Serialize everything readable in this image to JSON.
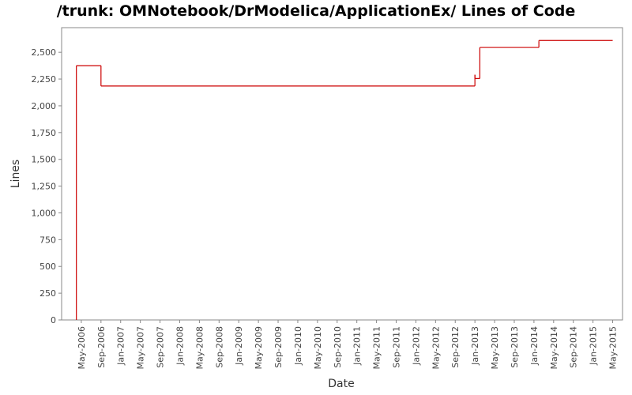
{
  "chart_data": {
    "type": "step-line",
    "title": "/trunk: OMNotebook/DrModelica/ApplicationEx/ Lines of Code",
    "x_label": "Date",
    "y_label": "Lines",
    "series": [
      {
        "name": "Lines",
        "color": "#cc0000",
        "x": [
          "2006-04",
          "2006-04",
          "2006-09",
          "2013-01",
          "2013-01",
          "2013-02",
          "2014-02",
          "2014-02",
          "2015-05"
        ],
        "values": [
          0,
          2375,
          2185,
          2290,
          2255,
          2545,
          2600,
          2610,
          2610
        ]
      }
    ],
    "xlim": [
      "2006-01",
      "2015-07"
    ],
    "xticks": [
      {
        "value": "2006-05",
        "label": "May-2006"
      },
      {
        "value": "2006-09",
        "label": "Sep-2006"
      },
      {
        "value": "2007-01",
        "label": "Jan-2007"
      },
      {
        "value": "2007-05",
        "label": "May-2007"
      },
      {
        "value": "2007-09",
        "label": "Sep-2007"
      },
      {
        "value": "2008-01",
        "label": "Jan-2008"
      },
      {
        "value": "2008-05",
        "label": "May-2008"
      },
      {
        "value": "2008-09",
        "label": "Sep-2008"
      },
      {
        "value": "2009-01",
        "label": "Jan-2009"
      },
      {
        "value": "2009-05",
        "label": "May-2009"
      },
      {
        "value": "2009-09",
        "label": "Sep-2009"
      },
      {
        "value": "2010-01",
        "label": "Jan-2010"
      },
      {
        "value": "2010-05",
        "label": "May-2010"
      },
      {
        "value": "2010-09",
        "label": "Sep-2010"
      },
      {
        "value": "2011-01",
        "label": "Jan-2011"
      },
      {
        "value": "2011-05",
        "label": "May-2011"
      },
      {
        "value": "2011-09",
        "label": "Sep-2011"
      },
      {
        "value": "2012-01",
        "label": "Jan-2012"
      },
      {
        "value": "2012-05",
        "label": "May-2012"
      },
      {
        "value": "2012-09",
        "label": "Sep-2012"
      },
      {
        "value": "2013-01",
        "label": "Jan-2013"
      },
      {
        "value": "2013-05",
        "label": "May-2013"
      },
      {
        "value": "2013-09",
        "label": "Sep-2013"
      },
      {
        "value": "2014-01",
        "label": "Jan-2014"
      },
      {
        "value": "2014-05",
        "label": "May-2014"
      },
      {
        "value": "2014-09",
        "label": "Sep-2014"
      },
      {
        "value": "2015-01",
        "label": "Jan-2015"
      },
      {
        "value": "2015-05",
        "label": "May-2015"
      }
    ],
    "ylim": [
      0,
      2730
    ],
    "yticks": [
      0,
      250,
      500,
      750,
      {
        "value": 1000,
        "label": "1,000"
      },
      {
        "value": 1250,
        "label": "1,250"
      },
      {
        "value": 1500,
        "label": "1,500"
      },
      {
        "value": 1750,
        "label": "1,750"
      },
      {
        "value": 2000,
        "label": "2,000"
      },
      {
        "value": 2250,
        "label": "2,250"
      },
      {
        "value": 2500,
        "label": "2,500"
      }
    ],
    "grid": false
  }
}
